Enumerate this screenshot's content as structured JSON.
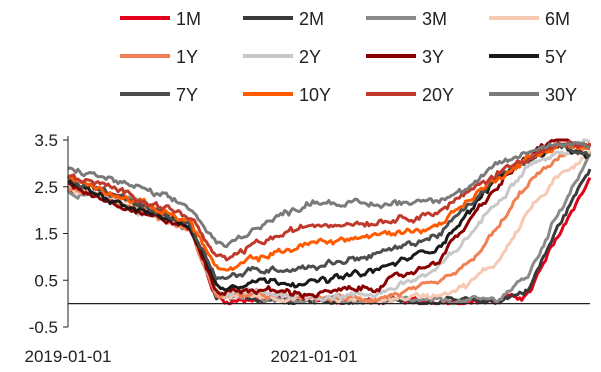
{
  "chart_data": {
    "type": "line",
    "title": "",
    "xlabel": "",
    "ylabel": "",
    "x_range": [
      "2019-01-01",
      "2023-04-01"
    ],
    "ylim": [
      -0.5,
      3.5
    ],
    "y_ticks": [
      "3.5",
      "2.5",
      "1.5",
      "0.5",
      "-0.5"
    ],
    "y_tick_values": [
      3.5,
      2.5,
      1.5,
      0.5,
      -0.5
    ],
    "x_tick_labels": [
      "2019-01-01",
      "2021-01-01"
    ],
    "x_tick_values": [
      "2019-01-01",
      "2021-01-01"
    ],
    "grid": false,
    "legend_position": "top",
    "dates": [
      "2019-01-01",
      "2019-07-01",
      "2020-01-01",
      "2020-03-15",
      "2020-04-15",
      "2020-07-01",
      "2021-01-01",
      "2021-07-01",
      "2022-01-01",
      "2022-04-01",
      "2022-07-01",
      "2022-10-01",
      "2023-01-01",
      "2023-04-01"
    ],
    "series": [
      {
        "name": "1M",
        "color": "#e2001a",
        "values": [
          2.4,
          2.25,
          1.6,
          0.15,
          0.05,
          0.1,
          0.08,
          0.05,
          0.05,
          0.05,
          0.05,
          0.2,
          1.5,
          2.7
        ]
      },
      {
        "name": "2M",
        "color": "#3a3a3a",
        "values": [
          2.4,
          2.25,
          1.6,
          0.15,
          0.1,
          0.12,
          0.08,
          0.05,
          0.05,
          0.05,
          0.05,
          0.3,
          1.7,
          2.9
        ]
      },
      {
        "name": "3M",
        "color": "#8a8a8a",
        "values": [
          2.4,
          2.25,
          1.6,
          0.2,
          0.12,
          0.15,
          0.08,
          0.05,
          0.05,
          0.05,
          0.1,
          0.6,
          2.0,
          3.2
        ]
      },
      {
        "name": "6M",
        "color": "#f6c9b2",
        "values": [
          2.45,
          2.2,
          1.6,
          0.2,
          0.15,
          0.18,
          0.1,
          0.07,
          0.2,
          0.4,
          0.9,
          2.0,
          2.7,
          3.3
        ]
      },
      {
        "name": "1Y",
        "color": "#f07f52",
        "values": [
          2.5,
          2.1,
          1.55,
          0.2,
          0.18,
          0.2,
          0.12,
          0.1,
          0.4,
          0.8,
          1.6,
          2.6,
          3.1,
          3.4
        ]
      },
      {
        "name": "2Y",
        "color": "#c8c8c8",
        "values": [
          2.55,
          2.05,
          1.6,
          0.25,
          0.2,
          0.25,
          0.15,
          0.2,
          0.7,
          1.4,
          2.2,
          3.0,
          3.2,
          3.5
        ]
      },
      {
        "name": "3Y",
        "color": "#8b0000",
        "values": [
          2.55,
          2.05,
          1.6,
          0.3,
          0.25,
          0.3,
          0.2,
          0.35,
          0.9,
          1.7,
          2.5,
          3.2,
          3.5,
          3.4
        ]
      },
      {
        "name": "5Y",
        "color": "#1a1a1a",
        "values": [
          2.6,
          2.1,
          1.65,
          0.45,
          0.35,
          0.5,
          0.45,
          0.7,
          1.2,
          1.9,
          2.7,
          3.1,
          3.4,
          3.1
        ]
      },
      {
        "name": "7Y",
        "color": "#4d4d4d",
        "values": [
          2.65,
          2.2,
          1.7,
          0.6,
          0.55,
          0.7,
          0.8,
          1.05,
          1.45,
          2.05,
          2.7,
          3.1,
          3.4,
          3.2
        ]
      },
      {
        "name": "10Y",
        "color": "#ff5a00",
        "values": [
          2.7,
          2.25,
          1.75,
          0.8,
          0.65,
          0.95,
          1.3,
          1.45,
          1.65,
          2.2,
          2.7,
          3.1,
          3.4,
          3.3
        ]
      },
      {
        "name": "20Y",
        "color": "#c0392b",
        "values": [
          2.75,
          2.35,
          1.85,
          1.0,
          0.9,
          1.25,
          1.7,
          1.75,
          1.95,
          2.35,
          2.8,
          3.15,
          3.4,
          3.35
        ]
      },
      {
        "name": "30Y",
        "color": "#7a7a7a",
        "values": [
          2.9,
          2.55,
          2.05,
          1.3,
          1.2,
          1.6,
          2.2,
          2.1,
          2.25,
          2.45,
          2.95,
          3.25,
          3.45,
          3.4
        ]
      }
    ]
  }
}
